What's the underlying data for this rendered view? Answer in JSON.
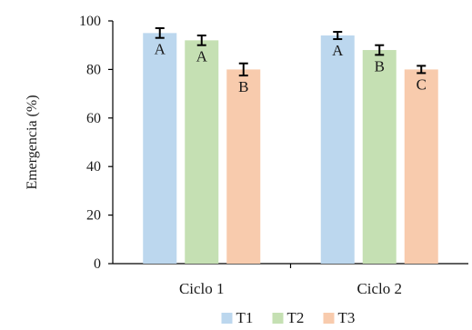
{
  "chart_data": {
    "type": "bar",
    "title": "",
    "xlabel": "",
    "ylabel": "Emergencia (%)",
    "ylim": [
      0,
      100
    ],
    "yticks": [
      0,
      20,
      40,
      60,
      80,
      100
    ],
    "categories": [
      "Ciclo 1",
      "Ciclo 2"
    ],
    "series": [
      {
        "name": "T1",
        "color": "#bcd7ee",
        "values": [
          95,
          94
        ],
        "errors": [
          2,
          1.5
        ],
        "letters": [
          "A",
          "A"
        ]
      },
      {
        "name": "T2",
        "color": "#c5e0b3",
        "values": [
          92,
          88
        ],
        "errors": [
          2,
          2
        ],
        "letters": [
          "A",
          "B"
        ]
      },
      {
        "name": "T3",
        "color": "#f8cbad",
        "values": [
          80,
          80
        ],
        "errors": [
          2.5,
          1.5
        ],
        "letters": [
          "B",
          "C"
        ]
      }
    ],
    "legend": "bottom",
    "grid": false
  }
}
